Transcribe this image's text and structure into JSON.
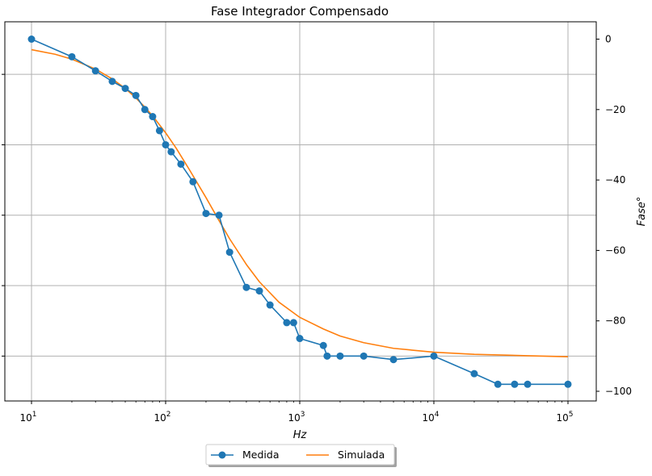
{
  "chart_data": {
    "type": "line",
    "title": "Fase Integrador Compensado",
    "xlabel": "Hz",
    "ylabel": "Fase°",
    "xscale": "log",
    "xlim": [
      10,
      100000
    ],
    "ylim": [
      -100,
      0
    ],
    "grid": true,
    "y_axis_position": "right",
    "legend_placement": "below-center",
    "x_ticks": [
      {
        "value": 10,
        "base": "10",
        "exp": "1"
      },
      {
        "value": 100,
        "base": "10",
        "exp": "2"
      },
      {
        "value": 1000,
        "base": "10",
        "exp": "3"
      },
      {
        "value": 10000,
        "base": "10",
        "exp": "4"
      },
      {
        "value": 100000,
        "base": "10",
        "exp": "5"
      }
    ],
    "y_ticks": [
      {
        "value": 0,
        "label": "0"
      },
      {
        "value": -20,
        "label": "−20"
      },
      {
        "value": -40,
        "label": "−40"
      },
      {
        "value": -60,
        "label": "−60"
      },
      {
        "value": -80,
        "label": "−80"
      },
      {
        "value": -100,
        "label": "−100"
      }
    ],
    "left_gridlines": [
      -10,
      -30,
      -50,
      -70,
      -90
    ],
    "series": [
      {
        "name": "Medida",
        "color": "#1f77b4",
        "marker": "circle",
        "x": [
          10,
          20,
          30,
          40,
          50,
          60,
          70,
          80,
          90,
          100,
          110,
          130,
          160,
          200,
          250,
          300,
          400,
          500,
          600,
          800,
          900,
          1000,
          1500,
          1600,
          2000,
          3000,
          5000,
          10000,
          20000,
          30000,
          40000,
          50000,
          100000
        ],
        "y": [
          0,
          -5,
          -9,
          -12,
          -14,
          -16,
          -20,
          -22,
          -26,
          -30,
          -32,
          -35.5,
          -40.5,
          -49.5,
          -50,
          -60.5,
          -70.5,
          -71.5,
          -75.5,
          -80.5,
          -80.5,
          -85,
          -87,
          -90,
          -90,
          -90,
          -91,
          -90,
          -95,
          -98,
          -98,
          -98,
          -98
        ]
      },
      {
        "name": "Simulada",
        "color": "#ff7f0e",
        "marker": "none",
        "x": [
          10,
          15,
          20,
          30,
          40,
          50,
          60,
          70,
          80,
          100,
          120,
          150,
          200,
          250,
          300,
          400,
          500,
          700,
          1000,
          1500,
          2000,
          3000,
          5000,
          10000,
          20000,
          50000,
          100000
        ],
        "y": [
          -3,
          -4.3,
          -5.7,
          -8.5,
          -11.3,
          -14,
          -16.7,
          -19.3,
          -21.8,
          -26.6,
          -31,
          -37,
          -45,
          -51.5,
          -56.7,
          -64,
          -68.9,
          -74.7,
          -79,
          -82.3,
          -84.3,
          -86.2,
          -87.8,
          -88.9,
          -89.5,
          -89.9,
          -90.2
        ]
      }
    ]
  }
}
